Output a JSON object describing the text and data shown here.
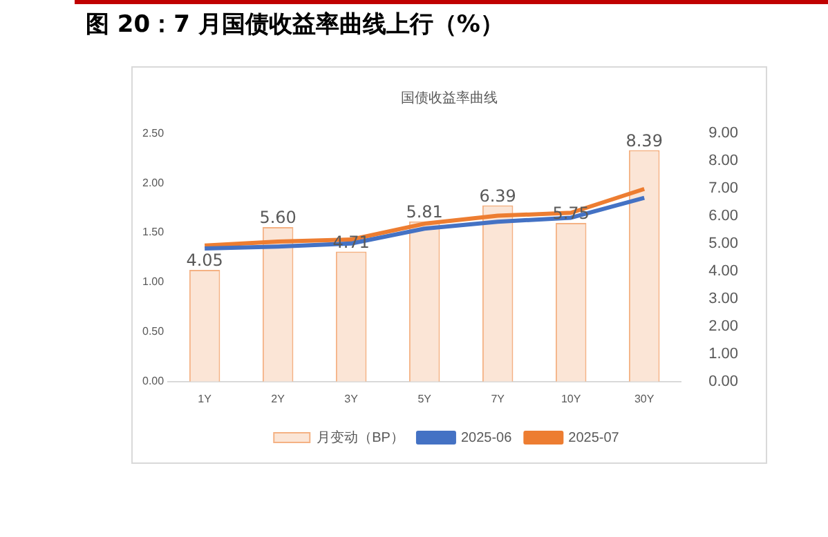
{
  "chart_data": {
    "type": "bar",
    "title": "图 20：7 月国债收益率曲线上行（%）",
    "subtitle": "国债收益率曲线",
    "categories": [
      "1Y",
      "2Y",
      "3Y",
      "5Y",
      "7Y",
      "10Y",
      "30Y"
    ],
    "series": [
      {
        "name": "月变动（BP）",
        "axis": "y2",
        "color": "#fbe5d6",
        "values": [
          4.05,
          5.6,
          4.71,
          5.81,
          6.39,
          5.75,
          8.39
        ],
        "value_labels": [
          "4.05",
          "5.60",
          "4.71",
          "5.81",
          "6.39",
          "5.75",
          "8.39"
        ]
      },
      {
        "name": "2025-06",
        "type": "line",
        "color": "#4472c4",
        "values": [
          1.34,
          1.36,
          1.39,
          1.54,
          1.61,
          1.65,
          1.85
        ]
      },
      {
        "name": "2025-07",
        "type": "line",
        "color": "#ed7d31",
        "values": [
          1.37,
          1.41,
          1.43,
          1.59,
          1.67,
          1.7,
          1.94
        ]
      }
    ],
    "ylim": [
      0,
      2.5
    ],
    "yticks": [
      {
        "value": 0,
        "label": "0.00"
      },
      {
        "value": 0.5,
        "label": "0.50"
      },
      {
        "value": 1,
        "label": "1.00"
      },
      {
        "value": 1.5,
        "label": "1.50"
      },
      {
        "value": 2,
        "label": "2.00"
      },
      {
        "value": 2.5,
        "label": "2.50"
      }
    ],
    "y2lim": [
      0,
      9
    ],
    "y2ticks": [
      {
        "value": 0,
        "label": "0.00"
      },
      {
        "value": 1,
        "label": "1.00"
      },
      {
        "value": 2,
        "label": "2.00"
      },
      {
        "value": 3,
        "label": "3.00"
      },
      {
        "value": 4,
        "label": "4.00"
      },
      {
        "value": 5,
        "label": "5.00"
      },
      {
        "value": 6,
        "label": "6.00"
      },
      {
        "value": 7,
        "label": "7.00"
      },
      {
        "value": 8,
        "label": "8.00"
      },
      {
        "value": 9,
        "label": "9.00"
      }
    ],
    "grid": false,
    "legend": "bottom",
    "marker": "none"
  }
}
